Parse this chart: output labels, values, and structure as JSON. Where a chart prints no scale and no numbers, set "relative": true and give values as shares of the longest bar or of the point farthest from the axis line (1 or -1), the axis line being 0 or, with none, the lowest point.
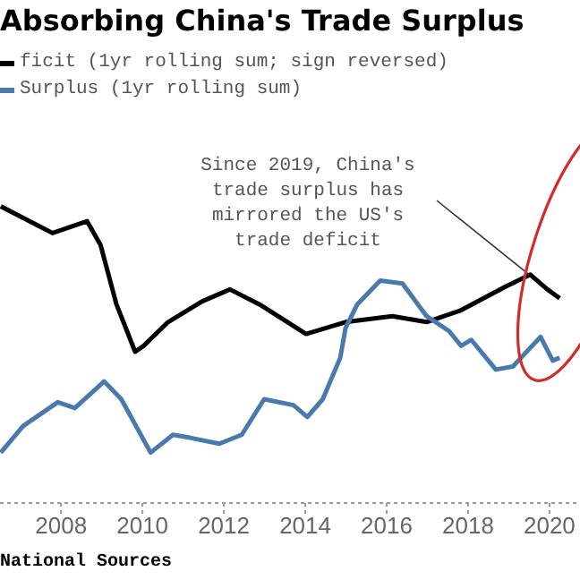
{
  "chart_data": {
    "type": "line",
    "title": "Absorbing China's Trade Surplus",
    "relative": true,
    "legend": "top left",
    "xlim": [
      2006.5,
      2020.75
    ],
    "xticks": [
      2008,
      2010,
      2012,
      2014,
      2016,
      2018,
      2020
    ],
    "annotations": [
      {
        "text": "Since 2019, China's\ntrade surplus has\nmirrored the US's\ntrade deficit",
        "x": 2019.5,
        "y": 0.77
      },
      "National Sources"
    ],
    "series": [
      {
        "name": "ficit (1yr rolling sum; sign reversed)",
        "color": "#000000",
        "x": [
          2006.52,
          2007.79,
          2008.64,
          2008.97,
          2009.36,
          2009.82,
          2010.03,
          2010.63,
          2011.47,
          2012.15,
          2012.87,
          2014.02,
          2014.99,
          2016.14,
          2016.98,
          2017.83,
          2018.93,
          2019.53,
          2019.95,
          2020.25
        ],
        "values": [
          1.0,
          0.91,
          0.95,
          0.87,
          0.67,
          0.51,
          0.53,
          0.61,
          0.68,
          0.72,
          0.67,
          0.57,
          0.61,
          0.63,
          0.61,
          0.65,
          0.73,
          0.77,
          0.72,
          0.69
        ]
      },
      {
        "name": "Surplus (1yr rolling sum)",
        "color": "#4a79ad",
        "x": [
          2006.52,
          2007.07,
          2007.92,
          2008.34,
          2009.06,
          2009.48,
          2010.2,
          2010.75,
          2011.17,
          2011.89,
          2012.44,
          2012.99,
          2013.71,
          2014.05,
          2014.43,
          2014.86,
          2014.99,
          2015.28,
          2015.84,
          2016.39,
          2016.98,
          2017.53,
          2017.83,
          2018.08,
          2018.68,
          2019.1,
          2019.78,
          2020.08,
          2020.25
        ],
        "values": [
          0.17,
          0.26,
          0.34,
          0.32,
          0.41,
          0.35,
          0.17,
          0.23,
          0.22,
          0.2,
          0.23,
          0.35,
          0.33,
          0.29,
          0.35,
          0.49,
          0.59,
          0.67,
          0.75,
          0.74,
          0.63,
          0.58,
          0.53,
          0.55,
          0.45,
          0.46,
          0.56,
          0.48,
          0.49
        ]
      }
    ]
  }
}
